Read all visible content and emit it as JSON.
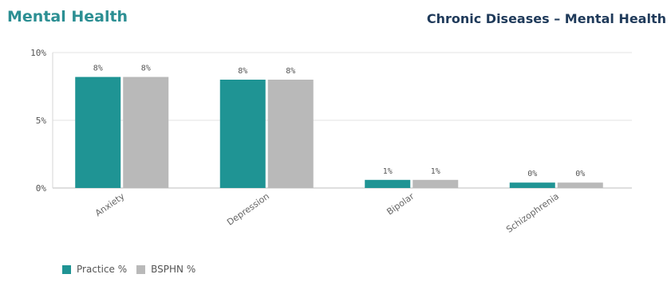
{
  "header": {
    "left_title": "Mental Health",
    "right_title": "Chronic Diseases – Mental Health"
  },
  "chart_data": {
    "type": "bar",
    "title": "Chronic Diseases – Mental Health",
    "categories": [
      "Anxiety",
      "Depression",
      "Bipolar",
      "Schizophrenia"
    ],
    "series": [
      {
        "name": "Practice %",
        "color": "#1f9494",
        "values": [
          8.2,
          8.0,
          0.6,
          0.4
        ],
        "labels": [
          "8%",
          "8%",
          "1%",
          "0%"
        ]
      },
      {
        "name": "BSPHN %",
        "color": "#b9b9b9",
        "values": [
          8.2,
          8.0,
          0.6,
          0.4
        ],
        "labels": [
          "8%",
          "8%",
          "1%",
          "0%"
        ]
      }
    ],
    "ylim": [
      0,
      10
    ],
    "yticks": [
      0,
      5,
      10
    ],
    "ytick_labels": [
      "0%",
      "5%",
      "10%"
    ],
    "grid": true,
    "legend": "bottom-left"
  }
}
